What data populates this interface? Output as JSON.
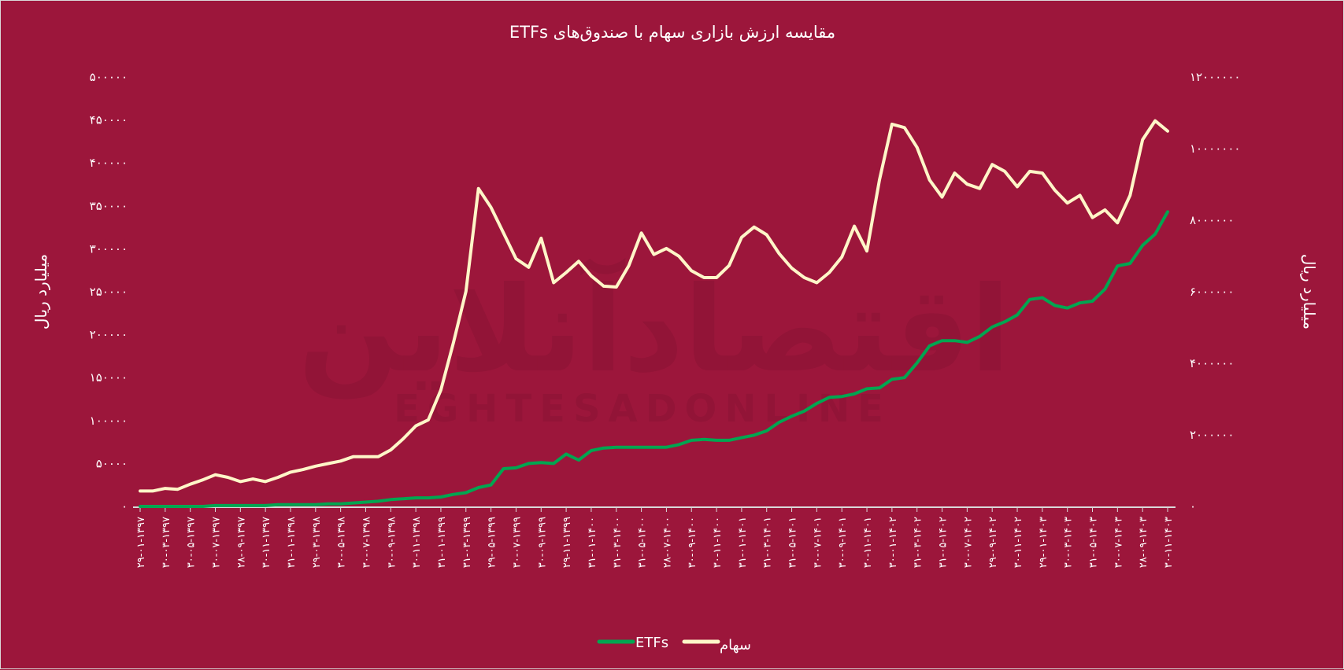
{
  "chart_data": {
    "type": "line",
    "title": "مقایسه ارزش بازاری سهام با صندوق‌های  ETFs",
    "ylabel_left": "میلیارد ریال",
    "ylabel_right": "میلیارد ریال",
    "ylim_left": [
      0,
      500000
    ],
    "ylim_right": [
      0,
      12000000
    ],
    "yticks_left": [
      "۵۰۰۰۰۰",
      "۴۵۰۰۰۰",
      "۴۰۰۰۰۰",
      "۳۵۰۰۰۰",
      "۳۰۰۰۰۰",
      "۲۵۰۰۰۰",
      "۲۰۰۰۰۰",
      "۱۵۰۰۰۰",
      "۱۰۰۰۰۰",
      "۵۰۰۰۰",
      "۰"
    ],
    "yticks_right": [
      "۱۲۰۰۰۰۰۰",
      "۱۰۰۰۰۰۰۰",
      "۸۰۰۰۰۰۰",
      "۶۰۰۰۰۰۰",
      "۴۰۰۰۰۰۰",
      "۲۰۰۰۰۰۰",
      "۰"
    ],
    "x_labels": [
      "۲۹-۰۱-۱۳۹۷",
      "۳۰-۰۳-۱۳۹۷",
      "۳۰-۰۵-۱۳۹۷",
      "۳۰-۰۷-۱۳۹۷",
      "۲۸-۰۹-۱۳۹۷",
      "۳۰-۱۱-۱۳۹۷",
      "۳۱-۰۱-۱۳۹۸",
      "۲۹-۰۳-۱۳۹۸",
      "۳۰-۰۵-۱۳۹۸",
      "۳۰-۰۷-۱۳۹۸",
      "۳۰-۰۹-۱۳۹۸",
      "۳۰-۱۱-۱۳۹۸",
      "۳۱-۰۱-۱۳۹۹",
      "۳۱-۰۳-۱۳۹۹",
      "۲۹-۰۵-۱۳۹۹",
      "۳۰-۰۷-۱۳۹۹",
      "۳۰-۰۹-۱۳۹۹",
      "۲۹-۱۱-۱۳۹۹",
      "۳۱-۰۱-۱۴۰۰",
      "۳۱-۰۳-۱۴۰۰",
      "۳۱-۰۵-۱۴۰۰",
      "۲۸-۰۷-۱۴۰۰",
      "۳۰-۰۹-۱۴۰۰",
      "۳۰-۱۱-۱۴۰۰",
      "۳۱-۰۱-۱۴۰۱",
      "۳۱-۰۳-۱۴۰۱",
      "۳۱-۰۵-۱۴۰۱",
      "۳۰-۰۷-۱۴۰۱",
      "۳۰-۰۹-۱۴۰۱",
      "۳۰-۱۱-۱۴۰۱",
      "۳۰-۰۱-۱۴۰۲",
      "۳۱-۰۳-۱۴۰۲",
      "۳۱-۰۵-۱۴۰۲",
      "۳۰-۰۷-۱۴۰۲",
      "۲۹-۰۹-۱۴۰۲",
      "۳۰-۱۱-۱۴۰۲",
      "۲۹-۰۱-۱۴۰۳",
      "۳۰-۰۳-۱۴۰۳",
      "۳۱-۰۵-۱۴۰۳",
      "۳۰-۰۷-۱۴۰۳",
      "۲۸-۰۹-۱۴۰۳",
      "۳۰-۱۱-۱۴۰۳"
    ],
    "n_points": 83,
    "series": [
      {
        "name": "ETFs",
        "axis": "left",
        "color": "#00a651",
        "values": [
          0,
          0,
          0,
          0,
          0,
          0,
          1000,
          1000,
          1000,
          1000,
          1000,
          2000,
          2000,
          2000,
          2000,
          3000,
          3000,
          4000,
          5000,
          6000,
          8000,
          9000,
          10000,
          10000,
          11000,
          14000,
          16000,
          22000,
          25000,
          44000,
          45000,
          50000,
          51000,
          50000,
          61000,
          54000,
          65000,
          68000,
          69000,
          69000,
          69000,
          69000,
          69000,
          72000,
          77000,
          78000,
          77000,
          77000,
          80000,
          83000,
          88000,
          98000,
          105000,
          111000,
          120000,
          127000,
          128000,
          131000,
          137000,
          138000,
          148000,
          150000,
          167000,
          187000,
          193000,
          193000,
          191000,
          198000,
          209000,
          215000,
          223000,
          241000,
          243000,
          234000,
          231000,
          237000,
          239000,
          253000,
          280000,
          283000,
          304000,
          317000,
          343000
        ]
      },
      {
        "name": "سهام",
        "axis": "right",
        "color": "#fff6c8",
        "values": [
          431000,
          431000,
          503000,
          479000,
          623000,
          743000,
          886000,
          814000,
          695000,
          767000,
          695000,
          814000,
          958000,
          1030000,
          1126000,
          1198000,
          1269000,
          1389000,
          1389000,
          1389000,
          1581000,
          1892000,
          2251000,
          2419000,
          3257000,
          4575000,
          6012000,
          8886000,
          8359000,
          7641000,
          6922000,
          6683000,
          7497000,
          6252000,
          6539000,
          6850000,
          6443000,
          6156000,
          6132000,
          6731000,
          7641000,
          7042000,
          7210000,
          6994000,
          6587000,
          6395000,
          6395000,
          6731000,
          7521000,
          7808000,
          7593000,
          7066000,
          6659000,
          6395000,
          6252000,
          6539000,
          6970000,
          7832000,
          7138000,
          9126000,
          10683000,
          10587000,
          10036000,
          9126000,
          8647000,
          9317000,
          9006000,
          8886000,
          9557000,
          9365000,
          8934000,
          9365000,
          9317000,
          8838000,
          8479000,
          8695000,
          8072000,
          8287000,
          7928000,
          8695000,
          10251000,
          10778000,
          10491000
        ]
      }
    ],
    "legend": [
      {
        "label": "ETFs",
        "color": "#00a651"
      },
      {
        "label": "سهام",
        "color": "#fff6c8"
      }
    ],
    "legend_position": "bottom",
    "grid": false
  },
  "colors": {
    "background": "#9c163b",
    "text": "#ffffff",
    "axis_line": "#d9d9d9",
    "watermark": "#8a1434"
  },
  "watermark": {
    "fa": "اقتصادآنلاین",
    "en": "EGHTESADONLINE"
  }
}
